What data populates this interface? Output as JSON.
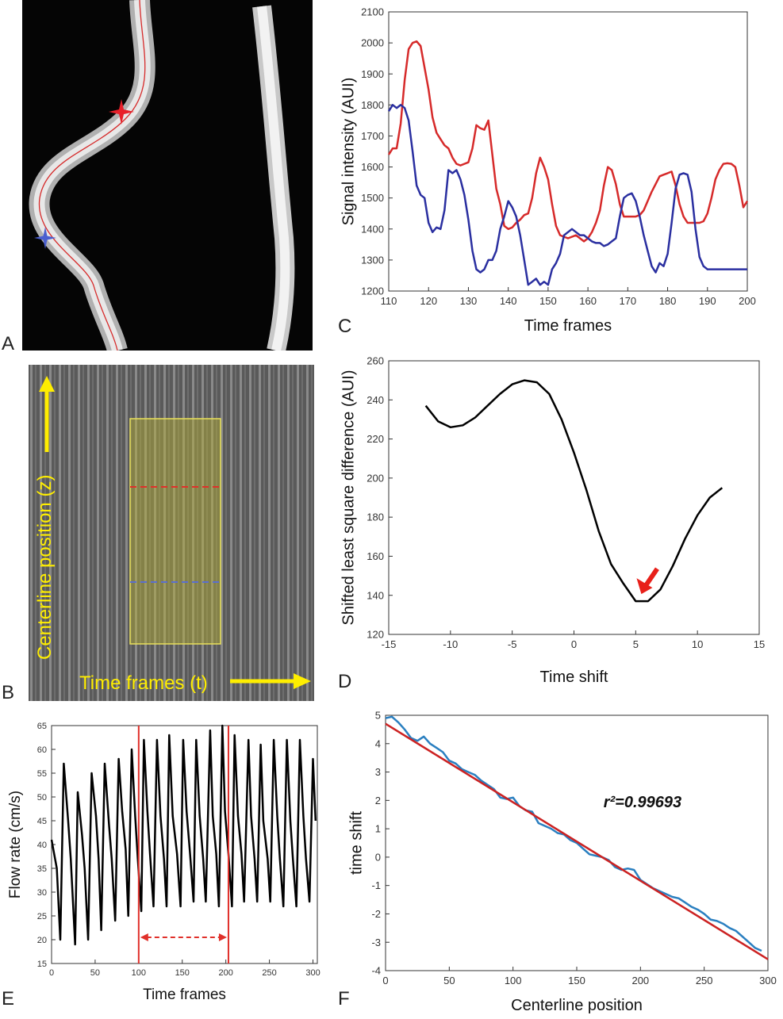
{
  "panel_letters": {
    "a": "A",
    "b": "B",
    "c": "C",
    "d": "D",
    "e": "E",
    "f": "F"
  },
  "panel_b": {
    "ylabel": "Centerline position (z)",
    "xlabel": "Time frames (t)",
    "colors": {
      "label": "#ffee00",
      "box": "#e8e05a",
      "red_line": "#e0302a",
      "blue_line": "#5b6fcf"
    }
  },
  "chart_data": [
    {
      "id": "C",
      "type": "line",
      "xlabel": "Time frames",
      "ylabel": "Signal intensity (AUI)",
      "xlim": [
        110,
        200
      ],
      "ylim": [
        1200,
        2100
      ],
      "xticks": [
        110,
        120,
        130,
        140,
        150,
        160,
        170,
        180,
        190,
        200
      ],
      "yticks": [
        1200,
        1300,
        1400,
        1500,
        1600,
        1700,
        1800,
        1900,
        2000,
        2100
      ],
      "series": [
        {
          "color": "#d62a2a",
          "x": [
            110,
            111,
            112,
            113,
            114,
            115,
            116,
            117,
            118,
            119,
            120,
            121,
            122,
            123,
            124,
            125,
            126,
            127,
            128,
            129,
            130,
            131,
            132,
            133,
            134,
            135,
            136,
            137,
            138,
            139,
            140,
            141,
            142,
            143,
            144,
            145,
            146,
            147,
            148,
            149,
            150,
            151,
            152,
            153,
            154,
            155,
            156,
            157,
            158,
            159,
            160,
            161,
            162,
            163,
            164,
            165,
            166,
            167,
            168,
            169,
            170,
            171,
            172,
            173,
            174,
            175,
            176,
            177,
            178,
            179,
            180,
            181,
            182,
            183,
            184,
            185,
            186,
            187,
            188,
            189,
            190,
            191,
            192,
            193,
            194,
            195,
            196,
            197,
            198,
            199,
            200
          ],
          "y": [
            1640,
            1660,
            1660,
            1740,
            1880,
            1980,
            2000,
            2005,
            1990,
            1920,
            1850,
            1760,
            1710,
            1690,
            1670,
            1660,
            1630,
            1610,
            1605,
            1610,
            1615,
            1660,
            1735,
            1725,
            1720,
            1750,
            1640,
            1530,
            1480,
            1410,
            1400,
            1405,
            1420,
            1430,
            1445,
            1450,
            1500,
            1580,
            1630,
            1600,
            1560,
            1480,
            1410,
            1380,
            1375,
            1370,
            1375,
            1380,
            1370,
            1360,
            1370,
            1390,
            1420,
            1460,
            1540,
            1600,
            1590,
            1545,
            1480,
            1440,
            1440,
            1440,
            1440,
            1445,
            1460,
            1490,
            1520,
            1545,
            1570,
            1575,
            1580,
            1585,
            1540,
            1480,
            1440,
            1420,
            1420,
            1420,
            1420,
            1425,
            1450,
            1500,
            1560,
            1590,
            1610,
            1612,
            1610,
            1600,
            1540,
            1470,
            1490
          ]
        },
        {
          "color": "#2a2fa0",
          "x": [
            110,
            111,
            112,
            113,
            114,
            115,
            116,
            117,
            118,
            119,
            120,
            121,
            122,
            123,
            124,
            125,
            126,
            127,
            128,
            129,
            130,
            131,
            132,
            133,
            134,
            135,
            136,
            137,
            138,
            139,
            140,
            141,
            142,
            143,
            144,
            145,
            146,
            147,
            148,
            149,
            150,
            151,
            152,
            153,
            154,
            155,
            156,
            157,
            158,
            159,
            160,
            161,
            162,
            163,
            164,
            165,
            166,
            167,
            168,
            169,
            170,
            171,
            172,
            173,
            174,
            175,
            176,
            177,
            178,
            179,
            180,
            181,
            182,
            183,
            184,
            185,
            186,
            187,
            188,
            189,
            190,
            191,
            192,
            193,
            194,
            195,
            196,
            197,
            198,
            199,
            200
          ],
          "y": [
            1780,
            1800,
            1790,
            1800,
            1790,
            1750,
            1650,
            1540,
            1510,
            1500,
            1420,
            1390,
            1405,
            1400,
            1460,
            1590,
            1580,
            1590,
            1560,
            1510,
            1430,
            1330,
            1270,
            1260,
            1270,
            1300,
            1300,
            1330,
            1400,
            1440,
            1490,
            1470,
            1440,
            1380,
            1300,
            1220,
            1230,
            1240,
            1220,
            1230,
            1220,
            1270,
            1290,
            1320,
            1380,
            1390,
            1400,
            1390,
            1380,
            1380,
            1370,
            1360,
            1355,
            1355,
            1345,
            1350,
            1360,
            1370,
            1440,
            1500,
            1510,
            1515,
            1490,
            1440,
            1380,
            1330,
            1280,
            1260,
            1290,
            1280,
            1320,
            1420,
            1530,
            1575,
            1580,
            1575,
            1520,
            1400,
            1310,
            1280,
            1270,
            1270,
            1270,
            1270,
            1270,
            1270,
            1270,
            1270,
            1270,
            1270,
            1270
          ]
        }
      ]
    },
    {
      "id": "D",
      "type": "line",
      "xlabel": "Time shift",
      "ylabel": "Shifted least square difference (AUI)",
      "xlim": [
        -15,
        15
      ],
      "ylim": [
        120,
        260
      ],
      "xticks": [
        -15,
        -10,
        -5,
        0,
        5,
        10,
        15
      ],
      "yticks": [
        120,
        140,
        160,
        180,
        200,
        220,
        240,
        260
      ],
      "series": [
        {
          "color": "#000000",
          "x": [
            -12,
            -11,
            -10,
            -9,
            -8,
            -7,
            -6,
            -5,
            -4,
            -3,
            -2,
            -1,
            0,
            1,
            2,
            3,
            4,
            5,
            6,
            7,
            8,
            9,
            10,
            11,
            12
          ],
          "y": [
            237,
            229,
            226,
            227,
            231,
            237,
            243,
            248,
            250,
            249,
            243,
            230,
            213,
            194,
            173,
            156,
            146,
            137,
            137,
            143,
            155,
            169,
            181,
            190,
            195
          ]
        }
      ],
      "annotation": {
        "type": "arrow",
        "x": 5.2,
        "y": 139,
        "color": "#e8201a"
      }
    },
    {
      "id": "E",
      "type": "line",
      "xlabel": "Time frames",
      "ylabel": "Flow rate (cm/s)",
      "xlim": [
        0,
        305
      ],
      "ylim": [
        15,
        65
      ],
      "xticks": [
        0,
        50,
        100,
        150,
        200,
        250,
        300
      ],
      "yticks": [
        15,
        20,
        25,
        30,
        35,
        40,
        45,
        50,
        55,
        60,
        65
      ],
      "markers": {
        "vlines": [
          100,
          203
        ],
        "range_arrow": [
          100,
          203
        ],
        "range_arrow_y": 20.5,
        "color": "#e0302a"
      },
      "series": [
        {
          "color": "#000000",
          "x": [
            0,
            4,
            6,
            10,
            14,
            19,
            22,
            27,
            30,
            35,
            38,
            42,
            46,
            51,
            54,
            57,
            61,
            66,
            69,
            73,
            77,
            81,
            85,
            88,
            92,
            96,
            99,
            103,
            106,
            110,
            113,
            117,
            121,
            125,
            129,
            132,
            135,
            139,
            144,
            148,
            151,
            155,
            159,
            163,
            166,
            170,
            174,
            177,
            182,
            185,
            189,
            192,
            196,
            199,
            203,
            207,
            210,
            214,
            218,
            221,
            226,
            229,
            233,
            236,
            240,
            243,
            248,
            251,
            255,
            259,
            262,
            266,
            270,
            274,
            277,
            281,
            285,
            289,
            292,
            296,
            300,
            303
          ],
          "y": [
            41,
            37,
            35,
            20,
            57,
            45,
            37,
            19,
            51,
            42,
            35,
            20,
            55,
            46,
            37,
            22,
            57,
            44,
            37,
            24,
            58,
            47,
            39,
            25,
            60,
            46,
            37,
            26,
            62,
            47,
            38,
            27,
            62,
            46,
            37,
            27,
            63,
            46,
            38,
            27,
            62,
            47,
            38,
            28,
            62,
            46,
            37,
            28,
            64,
            46,
            38,
            27,
            65,
            47,
            38,
            27,
            63,
            46,
            38,
            28,
            62,
            46,
            37,
            28,
            61,
            45,
            37,
            28,
            62,
            46,
            37,
            27,
            62,
            45,
            37,
            27,
            62,
            46,
            37,
            28,
            58,
            45
          ]
        }
      ]
    },
    {
      "id": "F",
      "type": "line",
      "xlabel": "Centerline position",
      "ylabel": "time shift",
      "xlim": [
        0,
        300
      ],
      "ylim": [
        -4,
        5
      ],
      "xticks": [
        0,
        50,
        100,
        150,
        200,
        250,
        300
      ],
      "yticks": [
        -4,
        -3,
        -2,
        -1,
        0,
        1,
        2,
        3,
        4,
        5
      ],
      "annotation_text": "r²=0.99693",
      "series": [
        {
          "color": "#2a7fc0",
          "x": [
            0,
            5,
            10,
            15,
            20,
            25,
            30,
            35,
            40,
            45,
            50,
            55,
            60,
            65,
            70,
            75,
            80,
            85,
            90,
            95,
            100,
            105,
            110,
            115,
            120,
            125,
            130,
            135,
            140,
            145,
            150,
            155,
            160,
            165,
            170,
            175,
            180,
            185,
            190,
            195,
            200,
            205,
            210,
            215,
            220,
            225,
            230,
            235,
            240,
            245,
            250,
            255,
            260,
            265,
            270,
            275,
            280,
            285,
            290,
            295
          ],
          "y": [
            4.9,
            4.95,
            4.75,
            4.5,
            4.2,
            4.1,
            4.25,
            4.0,
            3.85,
            3.7,
            3.4,
            3.3,
            3.1,
            3.0,
            2.9,
            2.7,
            2.55,
            2.4,
            2.1,
            2.05,
            2.1,
            1.8,
            1.65,
            1.6,
            1.2,
            1.1,
            1.0,
            0.85,
            0.8,
            0.6,
            0.5,
            0.3,
            0.1,
            0.05,
            0.0,
            -0.1,
            -0.35,
            -0.45,
            -0.4,
            -0.45,
            -0.8,
            -0.95,
            -1.1,
            -1.2,
            -1.3,
            -1.4,
            -1.45,
            -1.6,
            -1.75,
            -1.85,
            -2.0,
            -2.2,
            -2.25,
            -2.35,
            -2.5,
            -2.6,
            -2.8,
            -3.0,
            -3.2,
            -3.3
          ]
        },
        {
          "color": "#cc2222",
          "x": [
            0,
            300
          ],
          "y": [
            4.7,
            -3.6
          ]
        }
      ]
    }
  ]
}
